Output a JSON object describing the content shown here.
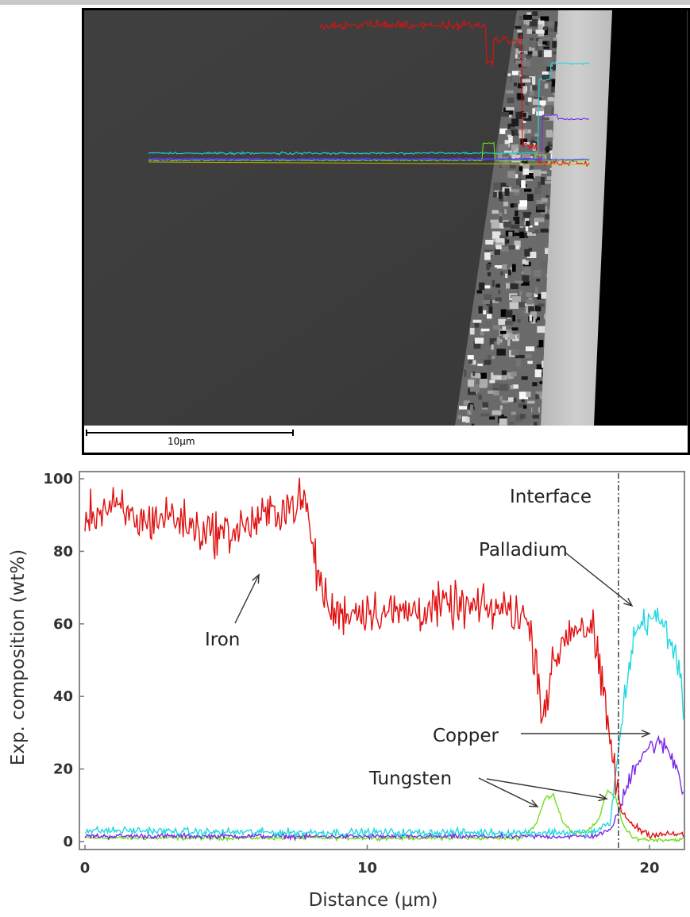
{
  "sem_image": {
    "scale_bar_label": "10μm",
    "colors": {
      "iron": "#e01010",
      "palladium": "#20d8e0",
      "copper": "#7a28e8",
      "tungsten": "#70e020",
      "extra": "#3050ff"
    }
  },
  "chart_data": {
    "type": "line",
    "title": "",
    "xlabel": "Distance (μm)",
    "ylabel": "Exp. composition  (wt%)",
    "xlim": [
      0,
      21.2
    ],
    "ylim": [
      0,
      105
    ],
    "xticks": [
      0,
      10,
      20
    ],
    "xtick_labels": [
      "0",
      "10",
      "20"
    ],
    "yticks": [
      0,
      20,
      40,
      60,
      80,
      100
    ],
    "ytick_labels": [
      "0",
      "20",
      "40",
      "60",
      "80",
      "100"
    ],
    "grid": false,
    "interface_x": 18.9,
    "series": [
      {
        "name": "Iron",
        "color": "#e01010",
        "x": [
          0,
          1,
          2,
          3,
          4,
          5,
          6,
          7,
          7.8,
          8.2,
          8.7,
          9,
          10,
          11,
          12,
          13,
          14,
          15,
          15.6,
          16,
          16.2,
          16.6,
          17,
          17.5,
          18,
          18.4,
          18.8,
          19,
          19.5,
          20,
          21,
          21.2
        ],
        "y": [
          90,
          92,
          88,
          90,
          86,
          85,
          88,
          92,
          94,
          75,
          63,
          63,
          64,
          63,
          64,
          65,
          64,
          64,
          62,
          50,
          35,
          48,
          57,
          60,
          58,
          38,
          18,
          8,
          4,
          2,
          2,
          2
        ]
      },
      {
        "name": "Palladium",
        "color": "#20d8e0",
        "x": [
          0,
          1,
          2,
          3,
          4,
          5,
          6,
          7,
          8,
          9,
          10,
          11,
          12,
          13,
          14,
          15,
          16,
          17,
          18,
          18.6,
          18.9,
          19.2,
          19.5,
          20,
          20.5,
          21,
          21.2
        ],
        "y": [
          3,
          3,
          3,
          2.8,
          2.6,
          2.6,
          2.6,
          2.5,
          2.5,
          2.5,
          2.5,
          2.5,
          2.5,
          2.5,
          2.5,
          2.5,
          2.5,
          2.5,
          2.5,
          5,
          25,
          45,
          58,
          62,
          60,
          50,
          35
        ]
      },
      {
        "name": "Copper",
        "color": "#7a28e8",
        "x": [
          0,
          2,
          4,
          6,
          8,
          10,
          12,
          14,
          16,
          17,
          18,
          18.6,
          19,
          19.4,
          19.8,
          20.2,
          20.6,
          21,
          21.2
        ],
        "y": [
          1.5,
          1.5,
          1.5,
          1.5,
          1.4,
          1.4,
          1.4,
          1.4,
          1.4,
          1.4,
          1.5,
          3,
          10,
          20,
          25,
          27,
          26,
          20,
          14
        ]
      },
      {
        "name": "Tungsten",
        "color": "#70e020",
        "x": [
          0,
          2,
          4,
          6,
          8,
          10,
          12,
          14,
          15.5,
          16,
          16.3,
          16.6,
          16.9,
          17.3,
          17.8,
          18.2,
          18.5,
          18.8,
          19.1,
          19.4,
          20,
          21.2
        ],
        "y": [
          1,
          1,
          1,
          1,
          1,
          1,
          1,
          1,
          1,
          5,
          12,
          13,
          6,
          2,
          3,
          6,
          14,
          12,
          4,
          1,
          0.5,
          0.5
        ]
      }
    ],
    "annotations": [
      {
        "text": "Interface"
      },
      {
        "text": "Palladium"
      },
      {
        "text": "Iron"
      },
      {
        "text": "Copper"
      },
      {
        "text": "Tungsten"
      }
    ]
  }
}
